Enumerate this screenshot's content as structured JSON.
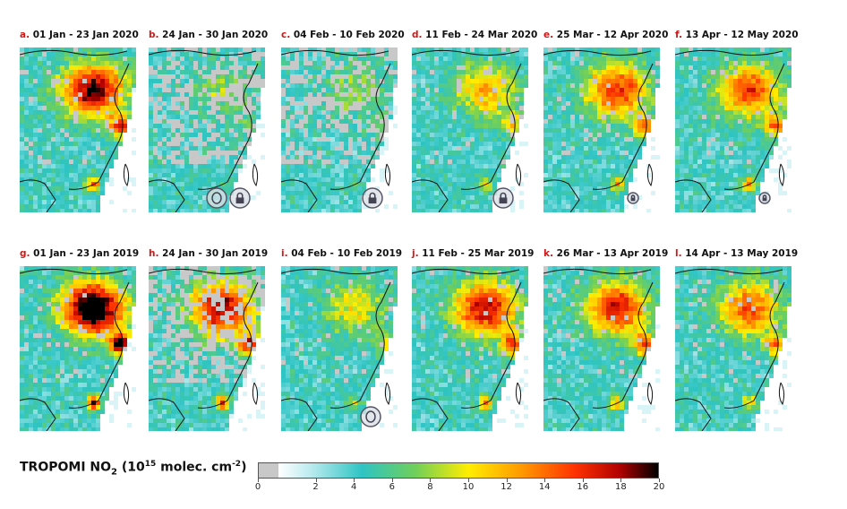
{
  "panels": [
    {
      "letter": "a.",
      "title": "01 Jan - 23 Jan 2020",
      "level": 0.78,
      "lock": ""
    },
    {
      "letter": "b.",
      "title": "24 Jan - 30 Jan 2020",
      "level": 0.18,
      "lock": "both"
    },
    {
      "letter": "c.",
      "title": "04 Feb - 10 Feb 2020",
      "level": 0.2,
      "lock": "lock"
    },
    {
      "letter": "d.",
      "title": "11 Feb - 24 Mar 2020",
      "level": 0.42,
      "lock": "lock"
    },
    {
      "letter": "e.",
      "title": "25 Mar - 12 Apr 2020",
      "level": 0.6,
      "lock": "lock-small"
    },
    {
      "letter": "f.",
      "title": "13 Apr - 12 May 2020",
      "level": 0.58,
      "lock": "lock-small"
    },
    {
      "letter": "g.",
      "title": "01 Jan - 23 Jan 2019",
      "level": 0.95,
      "lock": ""
    },
    {
      "letter": "h.",
      "title": "24 Jan - 30 Jan 2019",
      "level": 0.75,
      "lock": ""
    },
    {
      "letter": "i.",
      "title": "04 Feb - 10 Feb 2019",
      "level": 0.3,
      "lock": "lantern"
    },
    {
      "letter": "j.",
      "title": "11 Feb - 25 Mar 2019",
      "level": 0.72,
      "lock": ""
    },
    {
      "letter": "k.",
      "title": "26 Mar - 13 Apr 2019",
      "level": 0.66,
      "lock": ""
    },
    {
      "letter": "l.",
      "title": "14 Apr - 13 May 2019",
      "level": 0.55,
      "lock": ""
    }
  ],
  "legend": {
    "prefix": "TROPOMI NO",
    "sub": "2",
    "mid": " (10",
    "sup1": "15",
    "mid2": " molec. cm",
    "sup2": "-2",
    "end": ")"
  },
  "colorbar": {
    "ticks": [
      "0",
      "2",
      "4",
      "6",
      "8",
      "10",
      "12",
      "14",
      "16",
      "18",
      "20"
    ],
    "min": 0,
    "max": 20
  },
  "icons": {
    "lock": "padlock-icon",
    "lantern": "lantern-icon"
  }
}
